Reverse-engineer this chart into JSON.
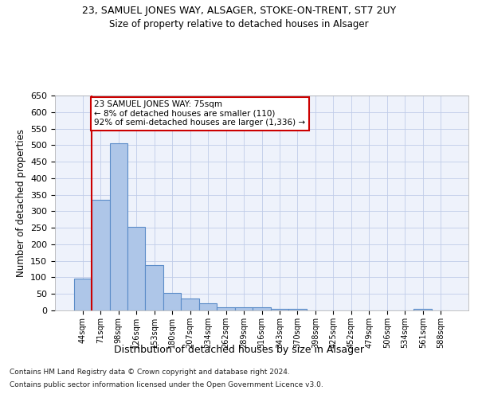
{
  "title": "23, SAMUEL JONES WAY, ALSAGER, STOKE-ON-TRENT, ST7 2UY",
  "subtitle": "Size of property relative to detached houses in Alsager",
  "xlabel": "Distribution of detached houses by size in Alsager",
  "ylabel": "Number of detached properties",
  "categories": [
    "44sqm",
    "71sqm",
    "98sqm",
    "126sqm",
    "153sqm",
    "180sqm",
    "207sqm",
    "234sqm",
    "262sqm",
    "289sqm",
    "316sqm",
    "343sqm",
    "370sqm",
    "398sqm",
    "425sqm",
    "452sqm",
    "479sqm",
    "506sqm",
    "534sqm",
    "561sqm",
    "588sqm"
  ],
  "values": [
    97,
    335,
    505,
    253,
    138,
    53,
    37,
    21,
    10,
    10,
    10,
    5,
    5,
    0,
    0,
    0,
    0,
    0,
    0,
    5,
    0
  ],
  "bar_color": "#aec6e8",
  "bar_edge_color": "#5b8cc8",
  "property_line_bin": 1,
  "annotation_text": "23 SAMUEL JONES WAY: 75sqm\n← 8% of detached houses are smaller (110)\n92% of semi-detached houses are larger (1,336) →",
  "annotation_box_color": "#ffffff",
  "annotation_box_edge_color": "#cc0000",
  "property_line_color": "#cc0000",
  "ylim": [
    0,
    650
  ],
  "yticks": [
    0,
    50,
    100,
    150,
    200,
    250,
    300,
    350,
    400,
    450,
    500,
    550,
    600,
    650
  ],
  "footnote1": "Contains HM Land Registry data © Crown copyright and database right 2024.",
  "footnote2": "Contains public sector information licensed under the Open Government Licence v3.0.",
  "background_color": "#eef2fb",
  "grid_color": "#c0cce8"
}
